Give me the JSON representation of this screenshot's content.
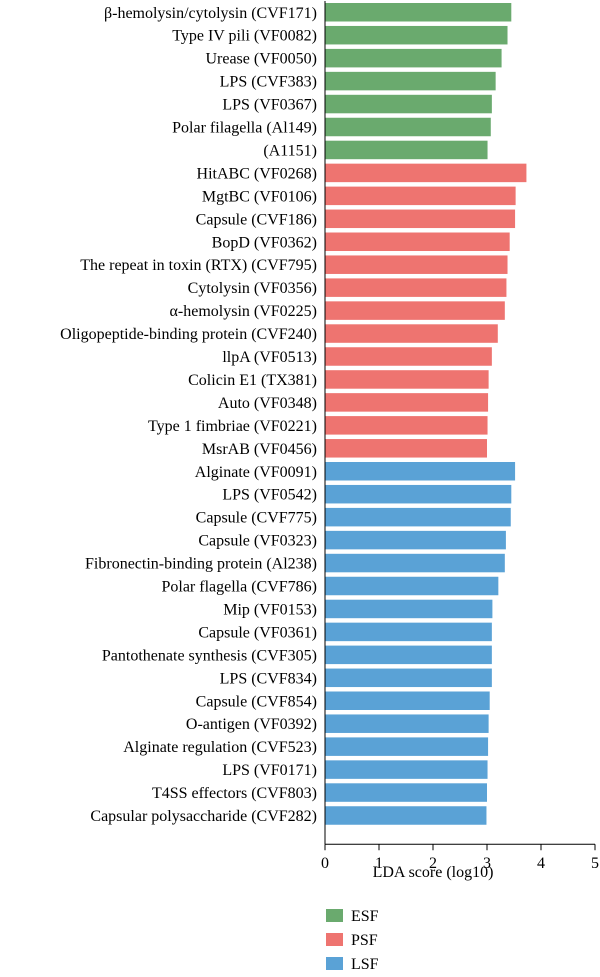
{
  "chart_data": {
    "type": "bar",
    "orientation": "horizontal",
    "xlabel": "LDA score (log10)",
    "xlim": [
      0,
      5
    ],
    "xticks": [
      "0",
      "1",
      "2",
      "3",
      "4",
      "5"
    ],
    "grid": false,
    "legend_position": "bottom-left",
    "legend": [
      {
        "name": "ESF",
        "color": "#6aaa6e"
      },
      {
        "name": "PSF",
        "color": "#ee7470"
      },
      {
        "name": "LSF",
        "color": "#5aa2d6"
      }
    ],
    "bars": [
      {
        "label": "β-hemolysin/cytolysin (CVF171)",
        "value": 3.45,
        "group": "ESF"
      },
      {
        "label": "Type IV pili (VF0082)",
        "value": 3.38,
        "group": "ESF"
      },
      {
        "label": "Urease (VF0050)",
        "value": 3.27,
        "group": "ESF"
      },
      {
        "label": "LPS (CVF383)",
        "value": 3.16,
        "group": "ESF"
      },
      {
        "label": "LPS (VF0367)",
        "value": 3.09,
        "group": "ESF"
      },
      {
        "label": "Polar filagella (Al149)",
        "value": 3.07,
        "group": "ESF"
      },
      {
        "label": "(A1151)",
        "value": 3.01,
        "group": "ESF"
      },
      {
        "label": "HitABC (VF0268)",
        "value": 3.73,
        "group": "PSF"
      },
      {
        "label": "MgtBC (VF0106)",
        "value": 3.53,
        "group": "PSF"
      },
      {
        "label": "Capsule (CVF186)",
        "value": 3.52,
        "group": "PSF"
      },
      {
        "label": "BopD (VF0362)",
        "value": 3.42,
        "group": "PSF"
      },
      {
        "label": "The repeat in toxin (RTX) (CVF795)",
        "value": 3.38,
        "group": "PSF"
      },
      {
        "label": "Cytolysin (VF0356)",
        "value": 3.36,
        "group": "PSF"
      },
      {
        "label": "α-hemolysin (VF0225)",
        "value": 3.33,
        "group": "PSF"
      },
      {
        "label": "Oligopeptide-binding protein (CVF240)",
        "value": 3.2,
        "group": "PSF"
      },
      {
        "label": "llpA (VF0513)",
        "value": 3.09,
        "group": "PSF"
      },
      {
        "label": "Colicin E1 (TX381)",
        "value": 3.03,
        "group": "PSF"
      },
      {
        "label": "Auto (VF0348)",
        "value": 3.02,
        "group": "PSF"
      },
      {
        "label": "Type 1 fimbriae (VF0221)",
        "value": 3.01,
        "group": "PSF"
      },
      {
        "label": "MsrAB (VF0456)",
        "value": 3.0,
        "group": "PSF"
      },
      {
        "label": "Alginate (VF0091)",
        "value": 3.52,
        "group": "LSF"
      },
      {
        "label": "LPS (VF0542)",
        "value": 3.45,
        "group": "LSF"
      },
      {
        "label": "Capsule (CVF775)",
        "value": 3.44,
        "group": "LSF"
      },
      {
        "label": "Capsule (VF0323)",
        "value": 3.35,
        "group": "LSF"
      },
      {
        "label": "Fibronectin-binding protein (Al238)",
        "value": 3.33,
        "group": "LSF"
      },
      {
        "label": "Polar flagella (CVF786)",
        "value": 3.21,
        "group": "LSF"
      },
      {
        "label": "Mip (VF0153)",
        "value": 3.1,
        "group": "LSF"
      },
      {
        "label": "Capsule (VF0361)",
        "value": 3.09,
        "group": "LSF"
      },
      {
        "label": "Pantothenate synthesis (CVF305)",
        "value": 3.09,
        "group": "LSF"
      },
      {
        "label": "LPS (CVF834)",
        "value": 3.09,
        "group": "LSF"
      },
      {
        "label": "Capsule (CVF854)",
        "value": 3.05,
        "group": "LSF"
      },
      {
        "label": "O-antigen (VF0392)",
        "value": 3.03,
        "group": "LSF"
      },
      {
        "label": "Alginate regulation (CVF523)",
        "value": 3.02,
        "group": "LSF"
      },
      {
        "label": "LPS (VF0171)",
        "value": 3.01,
        "group": "LSF"
      },
      {
        "label": "T4SS effectors (CVF803)",
        "value": 3.0,
        "group": "LSF"
      },
      {
        "label": "Capsular polysaccharide (CVF282)",
        "value": 2.99,
        "group": "LSF"
      }
    ]
  }
}
